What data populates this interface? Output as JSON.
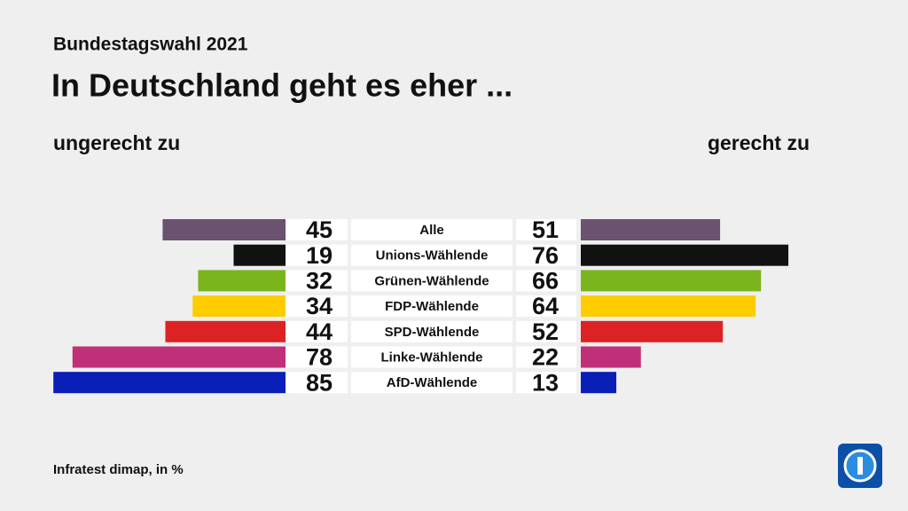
{
  "chart_data": {
    "type": "butterfly",
    "subtitle": "Bundestagswahl 2021",
    "title": "In Deutschland geht es eher ...",
    "categories": [
      "Alle",
      "Unions-Wählende",
      "Grünen-Wählende",
      "FDP-Wählende",
      "SPD-Wählende",
      "Linke-Wählende",
      "AfD-Wählende"
    ],
    "colors": [
      "#6a5270",
      "#111111",
      "#7ab51d",
      "#ffcc00",
      "#dc2222",
      "#bf3078",
      "#0a1fb8"
    ],
    "series": [
      {
        "name": "ungerecht zu",
        "side": "left",
        "values": [
          45,
          19,
          32,
          34,
          44,
          78,
          85
        ]
      },
      {
        "name": "gerecht zu",
        "side": "right",
        "values": [
          51,
          76,
          66,
          64,
          52,
          22,
          13
        ]
      }
    ],
    "source": "Infratest dimap, in %"
  }
}
